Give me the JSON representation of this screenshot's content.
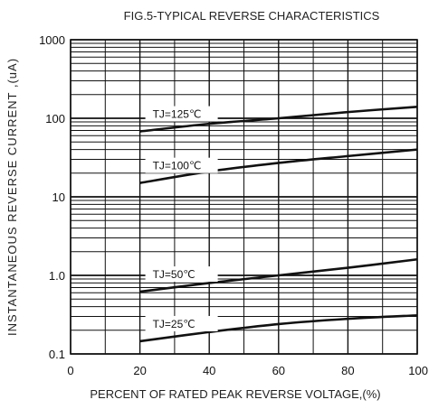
{
  "chart_data": {
    "type": "line",
    "title": "FIG.5-TYPICAL REVERSE CHARACTERISTICS",
    "xlabel": "PERCENT OF RATED PEAK REVERSE VOLTAGE,(%)",
    "ylabel": "INSTANTANEOUS REVERSE CURRENT ,(uA)",
    "xlim": [
      0,
      100
    ],
    "ylim": [
      0.1,
      1000
    ],
    "yscale": "log",
    "grid": true,
    "x_ticks": [
      0,
      20,
      40,
      60,
      80,
      100
    ],
    "x_tick_labels": [
      "0",
      "20",
      "40",
      "60",
      "80",
      "100"
    ],
    "y_ticks": [
      0.1,
      1.0,
      10,
      100,
      1000
    ],
    "y_tick_labels": [
      "0.1",
      "1.0",
      "10",
      "100",
      "1000"
    ],
    "series_label_placement": "inline-above-each-curve",
    "line_color": "#111111",
    "series": [
      {
        "name": "TJ=125℃",
        "x": [
          20,
          40,
          60,
          80,
          100
        ],
        "values": [
          68,
          85,
          100,
          120,
          140
        ]
      },
      {
        "name": "TJ=100℃",
        "x": [
          20,
          40,
          60,
          80,
          100
        ],
        "values": [
          15,
          21,
          27,
          33,
          40
        ]
      },
      {
        "name": "TJ=50℃",
        "x": [
          20,
          40,
          60,
          80,
          100
        ],
        "values": [
          0.62,
          0.8,
          1.0,
          1.25,
          1.6
        ]
      },
      {
        "name": "TJ=25℃",
        "x": [
          20,
          40,
          60,
          80,
          100
        ],
        "values": [
          0.145,
          0.19,
          0.24,
          0.28,
          0.31
        ]
      }
    ]
  }
}
